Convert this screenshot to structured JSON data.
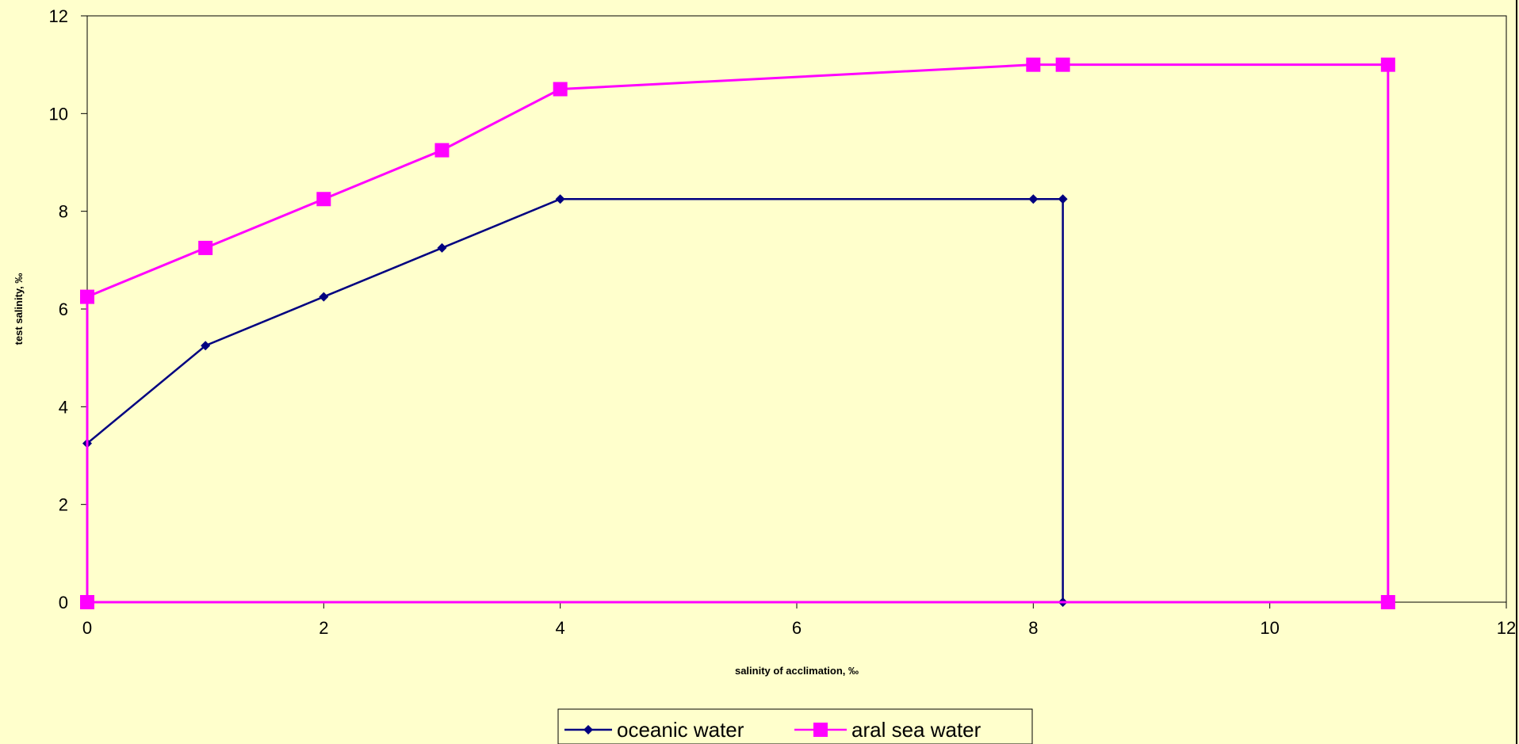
{
  "chart_data": {
    "type": "line",
    "title": "",
    "xlabel": "salinity of acclimation, ‰",
    "ylabel": "test salinity, ‰",
    "xlim": [
      0,
      12
    ],
    "ylim": [
      0,
      12
    ],
    "x_ticks": [
      0,
      2,
      4,
      6,
      8,
      10,
      12
    ],
    "y_ticks": [
      0,
      2,
      4,
      6,
      8,
      10,
      12
    ],
    "grid": false,
    "legend_position": "bottom",
    "series": [
      {
        "name": "oceanic water",
        "color": "#000080",
        "marker": "diamond",
        "points": [
          [
            0,
            0
          ],
          [
            0,
            3.25
          ],
          [
            1,
            5.25
          ],
          [
            2,
            6.25
          ],
          [
            3,
            7.25
          ],
          [
            4,
            8.25
          ],
          [
            8,
            8.25
          ],
          [
            8.25,
            8.25
          ],
          [
            8.25,
            0
          ],
          [
            0,
            0
          ]
        ]
      },
      {
        "name": "aral sea water",
        "color": "#ff00ff",
        "marker": "square",
        "points": [
          [
            0,
            0
          ],
          [
            0,
            6.25
          ],
          [
            1,
            7.25
          ],
          [
            2,
            8.25
          ],
          [
            3,
            9.25
          ],
          [
            4,
            10.5
          ],
          [
            8,
            11
          ],
          [
            8.25,
            11
          ],
          [
            11,
            11
          ],
          [
            11,
            0
          ],
          [
            0,
            0
          ]
        ]
      }
    ]
  }
}
